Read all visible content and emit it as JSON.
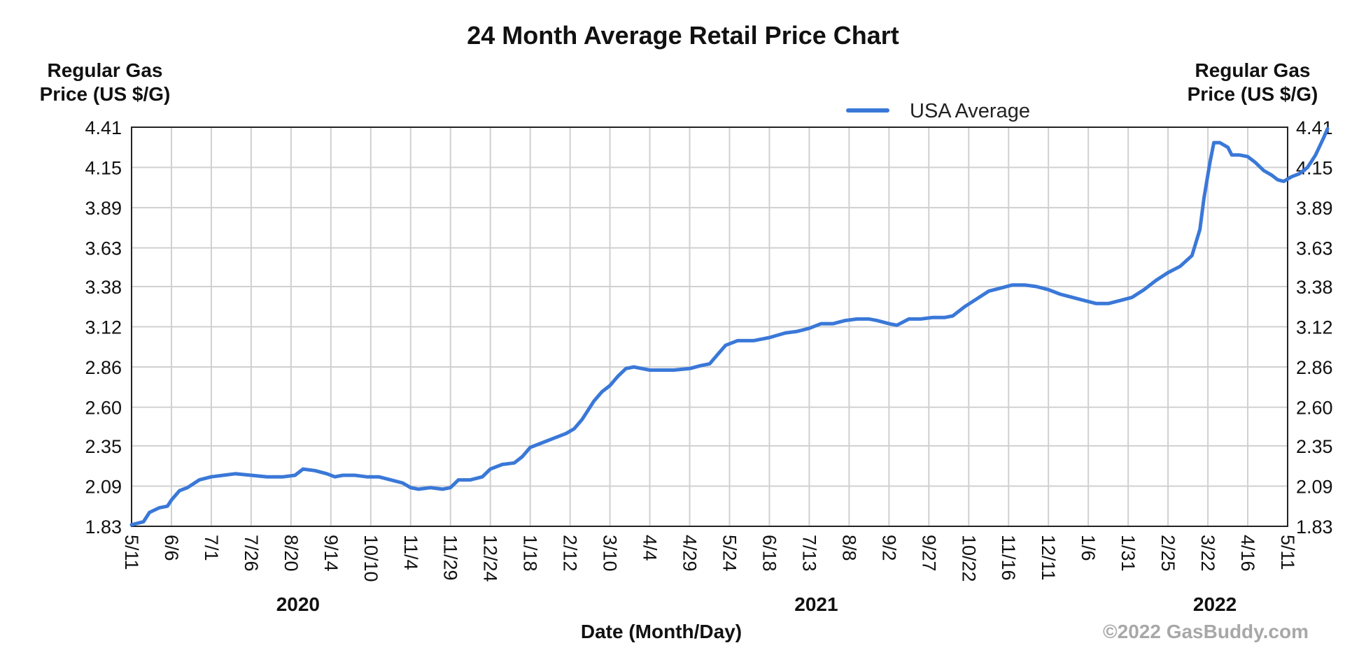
{
  "chart_data": {
    "type": "line",
    "title": "24 Month Average Retail Price Chart",
    "ylabel_left": "Regular Gas Price (US $/G)",
    "ylabel_right": "Regular Gas Price (US $/G)",
    "xlabel": "Date (Month/Day)",
    "ylim": [
      1.83,
      4.41
    ],
    "y_ticks": [
      "1.83",
      "2.09",
      "2.35",
      "2.60",
      "2.86",
      "3.12",
      "3.38",
      "3.63",
      "3.89",
      "4.15",
      "4.41"
    ],
    "x_ticks": [
      "5/11",
      "6/6",
      "7/1",
      "7/26",
      "8/20",
      "9/14",
      "10/10",
      "11/4",
      "11/29",
      "12/24",
      "1/18",
      "2/12",
      "3/10",
      "4/4",
      "4/29",
      "5/24",
      "6/18",
      "7/13",
      "8/8",
      "9/2",
      "9/27",
      "10/22",
      "11/16",
      "12/11",
      "1/6",
      "1/31",
      "2/25",
      "3/22",
      "4/16",
      "5/11"
    ],
    "years": [
      {
        "label": "2020",
        "at_tick": 4
      },
      {
        "label": "2021",
        "at_tick": 17
      },
      {
        "label": "2022",
        "at_tick": 27
      }
    ],
    "legend": {
      "position": "top",
      "entries": [
        "USA Average"
      ]
    },
    "grid": true,
    "series": [
      {
        "name": "USA Average",
        "color": "#3a78d8",
        "points": [
          [
            0,
            1.84
          ],
          [
            0.3,
            1.86
          ],
          [
            0.45,
            1.92
          ],
          [
            0.7,
            1.95
          ],
          [
            0.9,
            1.96
          ],
          [
            1.0,
            2.0
          ],
          [
            1.2,
            2.06
          ],
          [
            1.4,
            2.08
          ],
          [
            1.7,
            2.13
          ],
          [
            2.0,
            2.15
          ],
          [
            2.3,
            2.16
          ],
          [
            2.6,
            2.17
          ],
          [
            3.0,
            2.16
          ],
          [
            3.4,
            2.15
          ],
          [
            3.8,
            2.15
          ],
          [
            4.1,
            2.16
          ],
          [
            4.3,
            2.2
          ],
          [
            4.6,
            2.19
          ],
          [
            4.9,
            2.17
          ],
          [
            5.1,
            2.15
          ],
          [
            5.3,
            2.16
          ],
          [
            5.6,
            2.16
          ],
          [
            5.9,
            2.15
          ],
          [
            6.2,
            2.15
          ],
          [
            6.5,
            2.13
          ],
          [
            6.8,
            2.11
          ],
          [
            7.0,
            2.08
          ],
          [
            7.2,
            2.07
          ],
          [
            7.5,
            2.08
          ],
          [
            7.8,
            2.07
          ],
          [
            8.0,
            2.08
          ],
          [
            8.2,
            2.13
          ],
          [
            8.5,
            2.13
          ],
          [
            8.8,
            2.15
          ],
          [
            9.0,
            2.2
          ],
          [
            9.3,
            2.23
          ],
          [
            9.6,
            2.24
          ],
          [
            9.8,
            2.28
          ],
          [
            10.0,
            2.34
          ],
          [
            10.3,
            2.37
          ],
          [
            10.6,
            2.4
          ],
          [
            10.9,
            2.43
          ],
          [
            11.1,
            2.46
          ],
          [
            11.3,
            2.52
          ],
          [
            11.6,
            2.64
          ],
          [
            11.8,
            2.7
          ],
          [
            12.0,
            2.74
          ],
          [
            12.2,
            2.8
          ],
          [
            12.4,
            2.85
          ],
          [
            12.6,
            2.86
          ],
          [
            12.8,
            2.85
          ],
          [
            13.0,
            2.84
          ],
          [
            13.3,
            2.84
          ],
          [
            13.6,
            2.84
          ],
          [
            14.0,
            2.85
          ],
          [
            14.3,
            2.87
          ],
          [
            14.5,
            2.88
          ],
          [
            14.7,
            2.94
          ],
          [
            14.9,
            3.0
          ],
          [
            15.2,
            3.03
          ],
          [
            15.6,
            3.03
          ],
          [
            16.0,
            3.05
          ],
          [
            16.4,
            3.08
          ],
          [
            16.7,
            3.09
          ],
          [
            17.0,
            3.11
          ],
          [
            17.3,
            3.14
          ],
          [
            17.6,
            3.14
          ],
          [
            17.9,
            3.16
          ],
          [
            18.2,
            3.17
          ],
          [
            18.5,
            3.17
          ],
          [
            18.7,
            3.16
          ],
          [
            19.0,
            3.14
          ],
          [
            19.2,
            3.13
          ],
          [
            19.5,
            3.17
          ],
          [
            19.8,
            3.17
          ],
          [
            20.1,
            3.18
          ],
          [
            20.4,
            3.18
          ],
          [
            20.6,
            3.19
          ],
          [
            20.9,
            3.25
          ],
          [
            21.2,
            3.3
          ],
          [
            21.5,
            3.35
          ],
          [
            21.8,
            3.37
          ],
          [
            22.1,
            3.39
          ],
          [
            22.4,
            3.39
          ],
          [
            22.7,
            3.38
          ],
          [
            23.0,
            3.36
          ],
          [
            23.3,
            3.33
          ],
          [
            23.6,
            3.31
          ],
          [
            23.9,
            3.29
          ],
          [
            24.2,
            3.27
          ],
          [
            24.5,
            3.27
          ],
          [
            24.8,
            3.29
          ],
          [
            25.1,
            3.31
          ],
          [
            25.4,
            3.36
          ],
          [
            25.7,
            3.42
          ],
          [
            26.0,
            3.47
          ],
          [
            26.3,
            3.51
          ],
          [
            26.6,
            3.58
          ],
          [
            26.8,
            3.75
          ],
          [
            26.9,
            3.95
          ],
          [
            27.05,
            4.18
          ],
          [
            27.15,
            4.31
          ],
          [
            27.3,
            4.31
          ],
          [
            27.5,
            4.28
          ],
          [
            27.6,
            4.23
          ],
          [
            27.8,
            4.23
          ],
          [
            28.0,
            4.22
          ],
          [
            28.2,
            4.18
          ],
          [
            28.4,
            4.13
          ],
          [
            28.6,
            4.1
          ],
          [
            28.75,
            4.07
          ],
          [
            28.9,
            4.06
          ],
          [
            29.1,
            4.09
          ],
          [
            29.3,
            4.11
          ],
          [
            29.5,
            4.15
          ],
          [
            29.7,
            4.23
          ],
          [
            29.9,
            4.34
          ],
          [
            30.0,
            4.4
          ]
        ]
      }
    ]
  },
  "footer": {
    "copyright": "©2022 GasBuddy.com"
  }
}
